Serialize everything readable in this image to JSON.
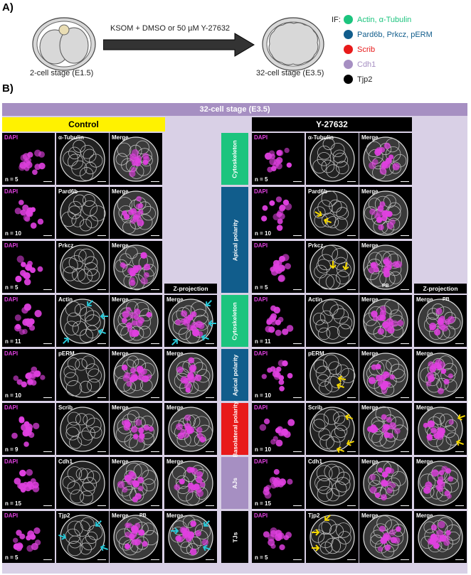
{
  "panel_a": {
    "letter": "A)",
    "stage_left": "2-cell stage (E1.5)",
    "stage_right": "32-cell stage (E3.5)",
    "treatment": "KSOM + DMSO or 50 µM Y-27632",
    "if_label": "IF:",
    "legend": [
      {
        "label": "Actin, α-Tubulin",
        "color": "#1cc47e"
      },
      {
        "label": "Pard6b, Prkcz, pERM",
        "color": "#115d8c"
      },
      {
        "label": "Scrib",
        "color": "#e81a1a"
      },
      {
        "label": "Cdh1",
        "color": "#a68fc2"
      },
      {
        "label": "Tjp2",
        "color": "#000000"
      }
    ]
  },
  "panel_b": {
    "letter": "B)",
    "banner": "32-cell stage (E3.5)",
    "control_title": "Control",
    "treated_title": "Y-27632",
    "zproj_label": "Z-projection",
    "channel_dapi": "DAPI",
    "channel_merge": "Merge",
    "pb": "PB",
    "categories": [
      {
        "label": "Cytoskeleton",
        "color": "#1cc47e"
      },
      {
        "label": "Apical polarity",
        "color": "#115d8c"
      },
      {
        "label": "Cytoskeleton",
        "color": "#1cc47e"
      },
      {
        "label": "Apical polarity",
        "color": "#115d8c"
      },
      {
        "label": "Basolateral polarity",
        "color": "#e81a1a"
      },
      {
        "label": "AJs",
        "color": "#a68fc2"
      },
      {
        "label": "TJs",
        "color": "#000000"
      }
    ],
    "rows": [
      {
        "marker": "α-Tubulin",
        "n_control": "n = 5",
        "n_treated": "n = 5"
      },
      {
        "marker": "Pard6b",
        "n_control": "n = 10",
        "n_treated": "n = 10"
      },
      {
        "marker": "Prkcz",
        "n_control": "n = 5",
        "n_treated": "n = 5"
      },
      {
        "marker": "Actin",
        "n_control": "n = 11",
        "n_treated": "n = 11"
      },
      {
        "marker": "pERM",
        "n_control": "n = 10",
        "n_treated": "n = 10"
      },
      {
        "marker": "Scrib",
        "n_control": "n = 9",
        "n_treated": "n = 10"
      },
      {
        "marker": "Cdh1",
        "n_control": "n = 15",
        "n_treated": "n = 15"
      },
      {
        "marker": "Tjp2",
        "n_control": "n = 5",
        "n_treated": "n = 5"
      }
    ],
    "colors": {
      "control_header": "#fff200",
      "treated_header": "#000000",
      "dapi": "#e040e0",
      "arrow_cyan": "#28c8d8",
      "arrow_yellow": "#f5d800"
    }
  }
}
